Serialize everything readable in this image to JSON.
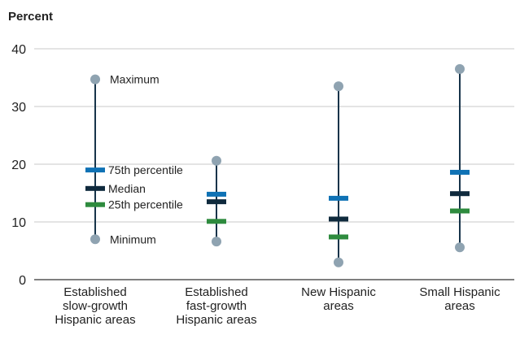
{
  "chart_data": {
    "type": "box",
    "ylabel": "Percent",
    "ylim": [
      0,
      40
    ],
    "yticks": [
      "0",
      "10",
      "20",
      "30",
      "40"
    ],
    "grid": true,
    "categories": [
      [
        "Established",
        "slow-growth",
        "Hispanic areas"
      ],
      [
        "Established",
        "fast-growth",
        "Hispanic areas"
      ],
      [
        "New Hispanic",
        "areas"
      ],
      [
        "Small Hispanic",
        "areas"
      ]
    ],
    "series": [
      {
        "name": "Maximum",
        "values": [
          34.7,
          20.6,
          33.5,
          36.5
        ]
      },
      {
        "name": "75th percentile",
        "values": [
          19.0,
          14.8,
          14.1,
          18.6
        ]
      },
      {
        "name": "Median",
        "values": [
          15.8,
          13.5,
          10.5,
          14.9
        ]
      },
      {
        "name": "25th percentile",
        "values": [
          13.0,
          10.1,
          7.4,
          11.9
        ]
      },
      {
        "name": "Minimum",
        "values": [
          7.0,
          6.6,
          3.0,
          5.6
        ]
      }
    ],
    "annotations": [
      "Maximum",
      "75th percentile",
      "Median",
      "25th percentile",
      "Minimum"
    ],
    "colors": {
      "whisker": "#17344a",
      "endpoint": "#8fa3b1",
      "p75": "#0f72b5",
      "median": "#0f2a3d",
      "p25": "#2e8b3e",
      "grid": "#c8c8c8"
    }
  }
}
